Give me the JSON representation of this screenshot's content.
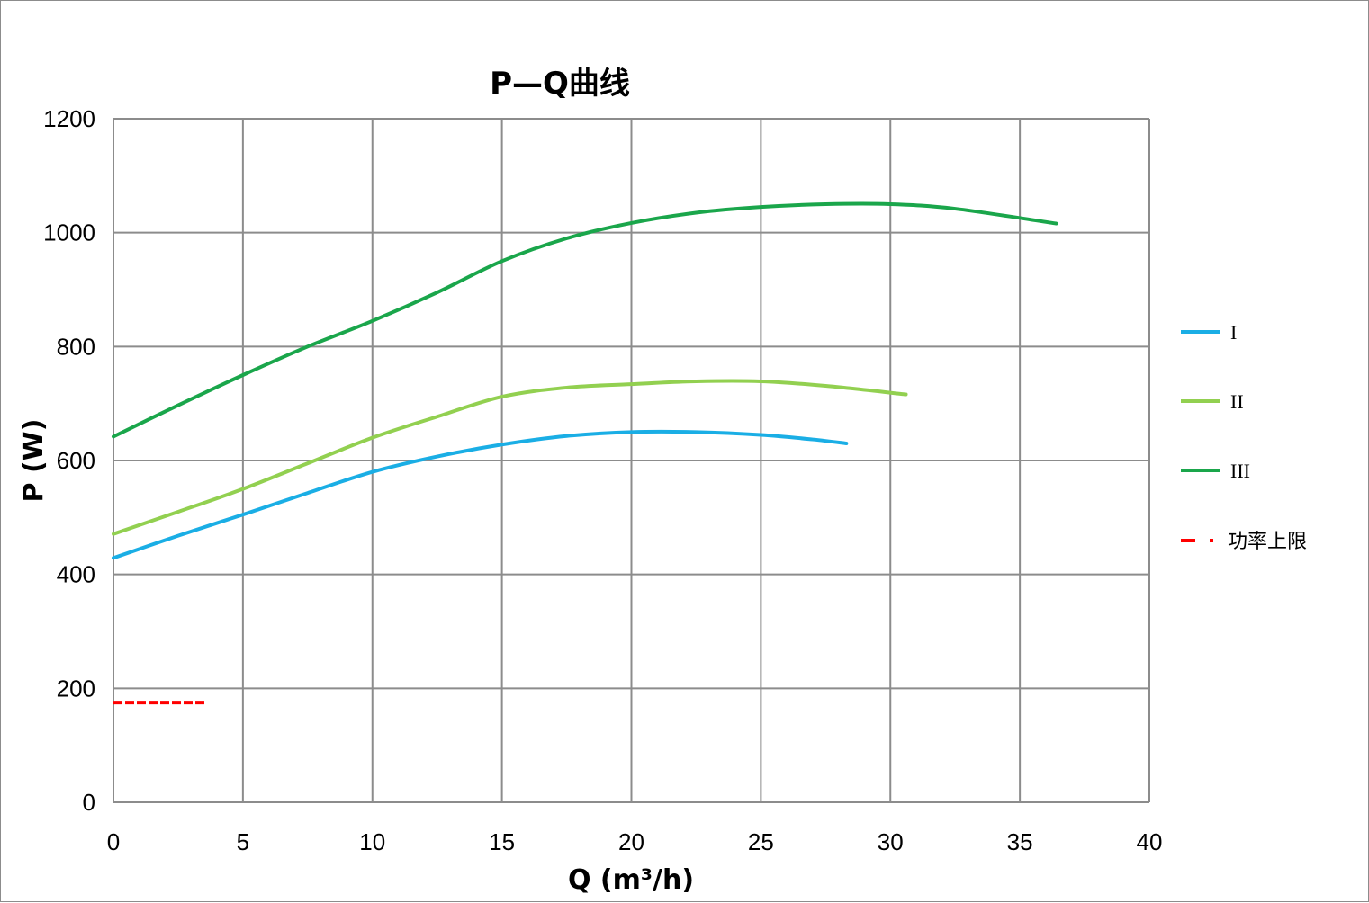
{
  "chart_data": {
    "type": "line",
    "title": "P—Q曲线",
    "xlabel": "Q (m³/h)",
    "ylabel": "P (W)",
    "xlim": [
      0,
      40
    ],
    "ylim": [
      0,
      1200
    ],
    "x_ticks": [
      0,
      5,
      10,
      15,
      20,
      25,
      30,
      35,
      40
    ],
    "y_ticks": [
      0,
      200,
      400,
      600,
      800,
      1000,
      1200
    ],
    "x_tick_labels": [
      "0",
      "5",
      "10",
      "15",
      "20",
      "25",
      "30",
      "35",
      "40"
    ],
    "y_tick_labels": [
      "0",
      "200",
      "400",
      "600",
      "800",
      "1000",
      "1200"
    ],
    "grid": true,
    "legend_position": "right",
    "series": [
      {
        "name": "I",
        "color": "#1aaee5",
        "style": "solid",
        "x": [
          0,
          2.5,
          5,
          7.5,
          10,
          12.5,
          15,
          17.5,
          20,
          22.5,
          25,
          27,
          28.3
        ],
        "y": [
          429,
          468,
          505,
          543,
          580,
          607,
          628,
          643,
          650,
          650,
          645,
          637,
          630
        ]
      },
      {
        "name": "II",
        "color": "#92d050",
        "style": "solid",
        "x": [
          0,
          2.5,
          5,
          7.5,
          10,
          12.5,
          15,
          17.5,
          20,
          22.5,
          25,
          27.5,
          30.6
        ],
        "y": [
          471,
          510,
          550,
          595,
          640,
          677,
          712,
          728,
          734,
          739,
          739,
          731,
          716
        ]
      },
      {
        "name": "III",
        "color": "#1aa64b",
        "style": "solid",
        "x": [
          0,
          2.5,
          5,
          7.5,
          10,
          12.5,
          15,
          17.5,
          20,
          22.5,
          25,
          27.5,
          30,
          32.5,
          36.4
        ],
        "y": [
          642,
          697,
          750,
          800,
          845,
          895,
          950,
          990,
          1017,
          1035,
          1045,
          1050,
          1050,
          1042,
          1016
        ]
      },
      {
        "name": "功率上限",
        "color": "#ff0000",
        "style": "dashed",
        "x": [
          0,
          3.6
        ],
        "y": [
          175,
          175
        ]
      }
    ]
  }
}
